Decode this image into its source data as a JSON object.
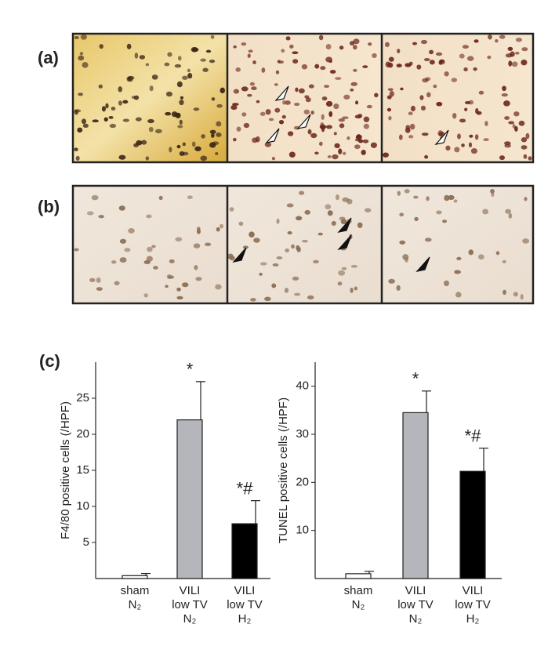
{
  "panels": [
    "(a)",
    "(b)",
    "(c)"
  ],
  "chart_data": [
    {
      "type": "bar",
      "ylabel": "F4/80 positive cells (/HPF)",
      "categories": [
        [
          "sham",
          "N₂"
        ],
        [
          "VILI",
          "low TV",
          "N₂"
        ],
        [
          "VILI",
          "low TV",
          "H₂"
        ]
      ],
      "values": [
        0.4,
        22,
        7.6
      ],
      "errors": [
        0.3,
        5.3,
        3.2
      ],
      "annotations": [
        null,
        "*",
        "*#"
      ],
      "colors": [
        "#ffffff",
        "#b4b6bc",
        "#000000"
      ],
      "ylim": [
        0,
        30
      ],
      "yticks": [
        5,
        10,
        15,
        20,
        25
      ]
    },
    {
      "type": "bar",
      "ylabel": "TUNEL positive cells (/HPF)",
      "categories": [
        [
          "sham",
          "N₂"
        ],
        [
          "VILI",
          "low TV",
          "N₂"
        ],
        [
          "VILI",
          "low TV",
          "H₂"
        ]
      ],
      "values": [
        1.0,
        34.5,
        22.3
      ],
      "errors": [
        0.5,
        4.5,
        4.8
      ],
      "annotations": [
        null,
        "*",
        "*#"
      ],
      "colors": [
        "#ffffff",
        "#b4b6bc",
        "#000000"
      ],
      "ylim": [
        0,
        45
      ],
      "yticks": [
        10,
        20,
        30,
        40
      ]
    }
  ]
}
